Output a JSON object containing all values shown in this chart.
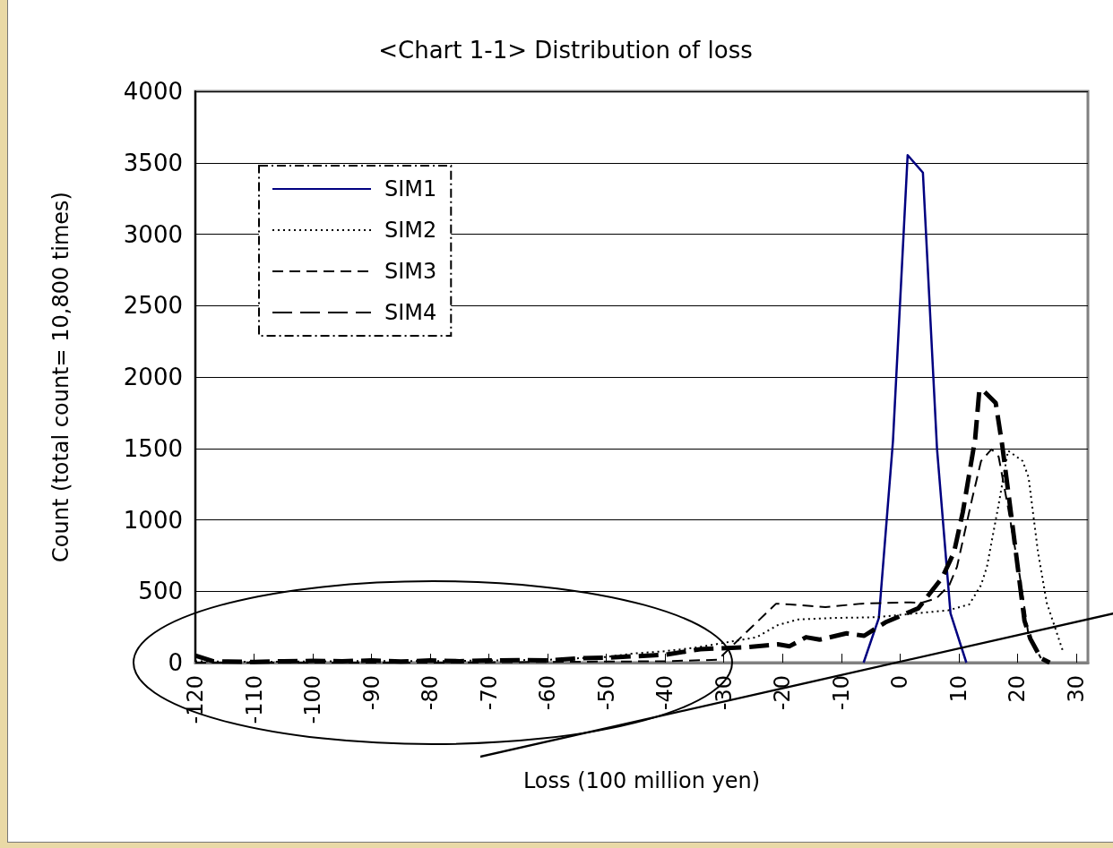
{
  "chart_data": {
    "type": "line",
    "title": "<Chart 1-1> Distribution of loss",
    "xlabel": "Loss (100 million yen)",
    "ylabel": "Count (total count= 10,800 times)",
    "xlim": [
      -120,
      32
    ],
    "xticks": [
      -120,
      -110,
      -100,
      -90,
      -80,
      -70,
      -60,
      -50,
      -40,
      -30,
      -20,
      -10,
      0,
      10,
      20,
      30
    ],
    "ylim": [
      0,
      4000
    ],
    "yticks": [
      0,
      500,
      1000,
      1500,
      2000,
      2500,
      3000,
      3500,
      4000
    ],
    "grid": "y",
    "legend": "top left",
    "marker": "none",
    "series": [
      {
        "name": "SIM1",
        "color": "#000080",
        "line_style": "solid",
        "x": [
          -6.2,
          -3.6,
          -1.2,
          1.3,
          3.9,
          6.3,
          8.6,
          11.3
        ],
        "values": [
          0,
          313,
          1550,
          3553,
          3431,
          1500,
          345,
          0
        ]
      },
      {
        "name": "SIM2",
        "color": "#000000",
        "line_style": "dotted",
        "x": [
          -120,
          -110,
          -100,
          -90,
          -80,
          -70,
          -60,
          -50,
          -45.7,
          -40,
          -34.2,
          -24.4,
          -20.8,
          -17.3,
          -11.1,
          -4,
          2.6,
          8.2,
          11.8,
          13.8,
          14.8,
          16.8,
          18.4,
          20.9,
          21.9,
          23.5,
          25,
          27.8
        ],
        "values": [
          10,
          5,
          8,
          12,
          10,
          15,
          20,
          40,
          63,
          80,
          109,
          178,
          263,
          303,
          313,
          318,
          345,
          366,
          408,
          543,
          670,
          1108,
          1484,
          1411,
          1296,
          773,
          418,
          73
        ]
      },
      {
        "name": "SIM3",
        "color": "#000000",
        "line_style": "dashed",
        "x": [
          -120,
          -80,
          -60,
          -40,
          -31,
          -28.4,
          -21.1,
          -18.8,
          -15.2,
          -12.7,
          -6.6,
          1.6,
          3.6,
          6.2,
          8.4,
          9.7,
          12.3,
          13.8,
          15.6,
          16.8,
          18.4,
          20.4,
          21.9,
          24
        ],
        "values": [
          0,
          0,
          5,
          10,
          20,
          125,
          413,
          408,
          397,
          389,
          413,
          422,
          418,
          450,
          543,
          670,
          1150,
          1411,
          1494,
          1442,
          1087,
          606,
          188,
          31
        ]
      },
      {
        "name": "SIM4",
        "color": "#000000",
        "line_style": "dashed",
        "x": [
          -120,
          -117,
          -115,
          -110,
          -105,
          -100,
          -95,
          -90,
          -85,
          -80,
          -75,
          -70,
          -65,
          -60,
          -55,
          -50,
          -45,
          -40,
          -34,
          -26,
          -20.8,
          -18.8,
          -16,
          -13.7,
          -9.1,
          -6.1,
          -2.5,
          3.1,
          7.2,
          9.2,
          10.7,
          12.8,
          13.5,
          14,
          16.3,
          17.4,
          18.9,
          21.2,
          22.2,
          24,
          25.5
        ],
        "values": [
          50,
          10,
          8,
          5,
          10,
          12,
          10,
          15,
          8,
          15,
          10,
          15,
          18,
          15,
          30,
          35,
          45,
          55,
          94,
          109,
          128,
          115,
          178,
          161,
          205,
          188,
          282,
          380,
          596,
          773,
          1055,
          1567,
          1902,
          1912,
          1818,
          1525,
          1045,
          293,
          167,
          31,
          0
        ]
      }
    ]
  }
}
